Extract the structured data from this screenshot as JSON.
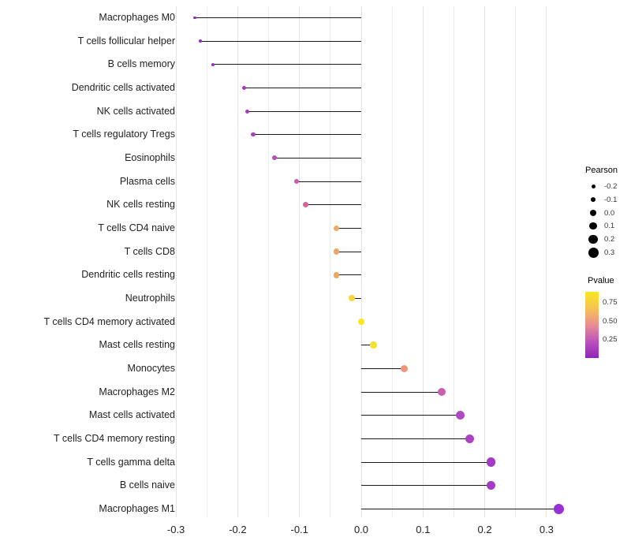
{
  "chart_data": {
    "type": "lollipop",
    "title": "",
    "xlabel": "",
    "ylabel": "",
    "xlim": [
      -0.31,
      0.345
    ],
    "grid": true,
    "x_ticks": [
      {
        "value": -0.3,
        "label": "-0.3"
      },
      {
        "value": -0.2,
        "label": "-0.2"
      },
      {
        "value": -0.1,
        "label": "-0.1"
      },
      {
        "value": 0.0,
        "label": "0.0"
      },
      {
        "value": 0.1,
        "label": "0.1"
      },
      {
        "value": 0.2,
        "label": "0.2"
      },
      {
        "value": 0.3,
        "label": "0.3"
      }
    ],
    "points": [
      {
        "label": "Macrophages M0",
        "pearson": -0.27,
        "pvalue_color": "#8d25b8"
      },
      {
        "label": "T cells follicular helper",
        "pearson": -0.26,
        "pvalue_color": "#9129bb"
      },
      {
        "label": "B cells memory",
        "pearson": -0.24,
        "pvalue_color": "#9c30c0"
      },
      {
        "label": "Dendritic cells activated",
        "pearson": -0.19,
        "pvalue_color": "#a63abf"
      },
      {
        "label": "NK cells activated",
        "pearson": -0.185,
        "pvalue_color": "#a63abf"
      },
      {
        "label": "T cells regulatory Tregs",
        "pearson": -0.175,
        "pvalue_color": "#aa3ec0"
      },
      {
        "label": "Eosinophils",
        "pearson": -0.14,
        "pvalue_color": "#b94cbc"
      },
      {
        "label": "Plasma cells",
        "pearson": -0.105,
        "pvalue_color": "#c75cab"
      },
      {
        "label": "NK cells resting",
        "pearson": -0.09,
        "pvalue_color": "#cf6a9f"
      },
      {
        "label": "T cells CD4 naive",
        "pearson": -0.04,
        "pvalue_color": "#f2a963"
      },
      {
        "label": "T cells CD8",
        "pearson": -0.04,
        "pvalue_color": "#f0a45f"
      },
      {
        "label": "Dendritic cells resting",
        "pearson": -0.04,
        "pvalue_color": "#f0a45f"
      },
      {
        "label": "Neutrophils",
        "pearson": -0.015,
        "pvalue_color": "#f6d63a"
      },
      {
        "label": "T cells CD4 memory activated",
        "pearson": 0.0,
        "pvalue_color": "#f9e721"
      },
      {
        "label": "Mast cells resting",
        "pearson": 0.02,
        "pvalue_color": "#f7e02b"
      },
      {
        "label": "Monocytes",
        "pearson": 0.07,
        "pvalue_color": "#ef9577"
      },
      {
        "label": "Macrophages M2",
        "pearson": 0.13,
        "pvalue_color": "#c75fb3"
      },
      {
        "label": "Mast cells activated",
        "pearson": 0.16,
        "pvalue_color": "#b149c1"
      },
      {
        "label": "T cells CD4 memory resting",
        "pearson": 0.175,
        "pvalue_color": "#ad42c3"
      },
      {
        "label": "T cells gamma delta",
        "pearson": 0.21,
        "pvalue_color": "#a639c6"
      },
      {
        "label": "B cells naive",
        "pearson": 0.21,
        "pvalue_color": "#a639c6"
      },
      {
        "label": "Macrophages M1",
        "pearson": 0.32,
        "pvalue_color": "#9930d6"
      }
    ],
    "size_legend": {
      "title": "Pearson",
      "entries": [
        {
          "value": -0.2,
          "label": "-0.2"
        },
        {
          "value": -0.1,
          "label": "-0.1"
        },
        {
          "value": 0.0,
          "label": "0.0"
        },
        {
          "value": 0.1,
          "label": "0.1"
        },
        {
          "value": 0.2,
          "label": "0.2"
        },
        {
          "value": 0.3,
          "label": "0.3"
        }
      ]
    },
    "color_legend": {
      "title": "Pvalue",
      "ticks": [
        "0.75",
        "0.50",
        "0.25"
      ],
      "gradient_top_color": "#f9e721",
      "gradient_bottom_color": "#8d25b8"
    },
    "legend_position": "right"
  }
}
